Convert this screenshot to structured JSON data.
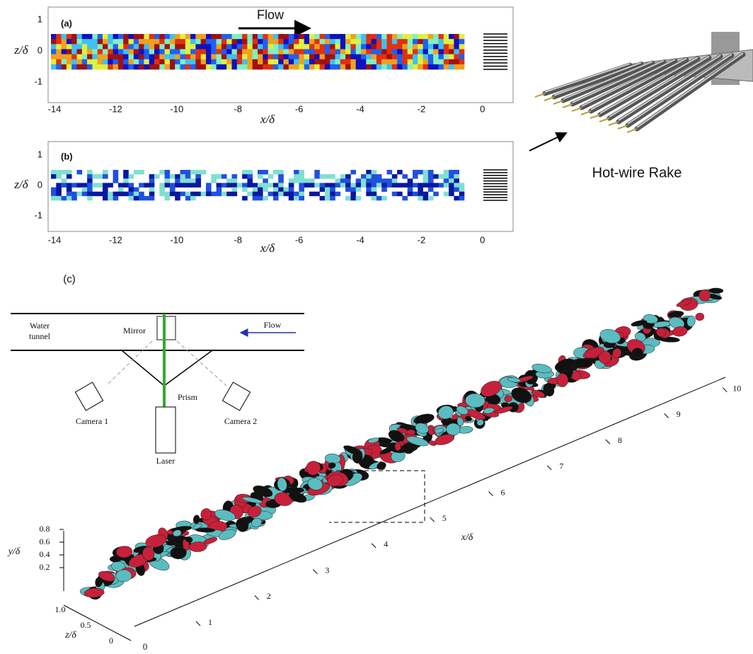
{
  "panel_a": {
    "label": "(a)",
    "flow": "Flow",
    "ylabel": "z/δ",
    "yticks": [
      "1",
      "0",
      "-1"
    ],
    "xticks": [
      "-14",
      "-12",
      "-10",
      "-8",
      "-6",
      "-4",
      "-2",
      "0"
    ],
    "xlabel": "x/δ"
  },
  "panel_b": {
    "label": "(b)",
    "ylabel": "z/δ",
    "yticks": [
      "1",
      "0",
      "-1"
    ],
    "xticks": [
      "-14",
      "-12",
      "-10",
      "-8",
      "-6",
      "-4",
      "-2",
      "0"
    ],
    "xlabel": "x/δ"
  },
  "rake": {
    "label": "Hot-wire Rake"
  },
  "panel_c": {
    "label": "(c)",
    "schematic": {
      "water_tunnel": [
        "Water",
        "tunnel"
      ],
      "mirror": "Mirror",
      "flow": "Flow",
      "prism": "Prism",
      "camera1": "Camera 1",
      "camera2": "Camera 2",
      "laser": "Laser"
    },
    "xticks": [
      "1",
      "2",
      "3",
      "4",
      "5",
      "6",
      "7",
      "8",
      "9",
      "10"
    ],
    "xlabel": "x/δ",
    "ylabel": "y/δ",
    "yticks": [
      "0.8",
      "0.6",
      "0.4",
      "0.2"
    ],
    "zlabel": "z/δ",
    "zticks": [
      "1.0",
      "0.5",
      "0"
    ],
    "origin": "0"
  }
}
